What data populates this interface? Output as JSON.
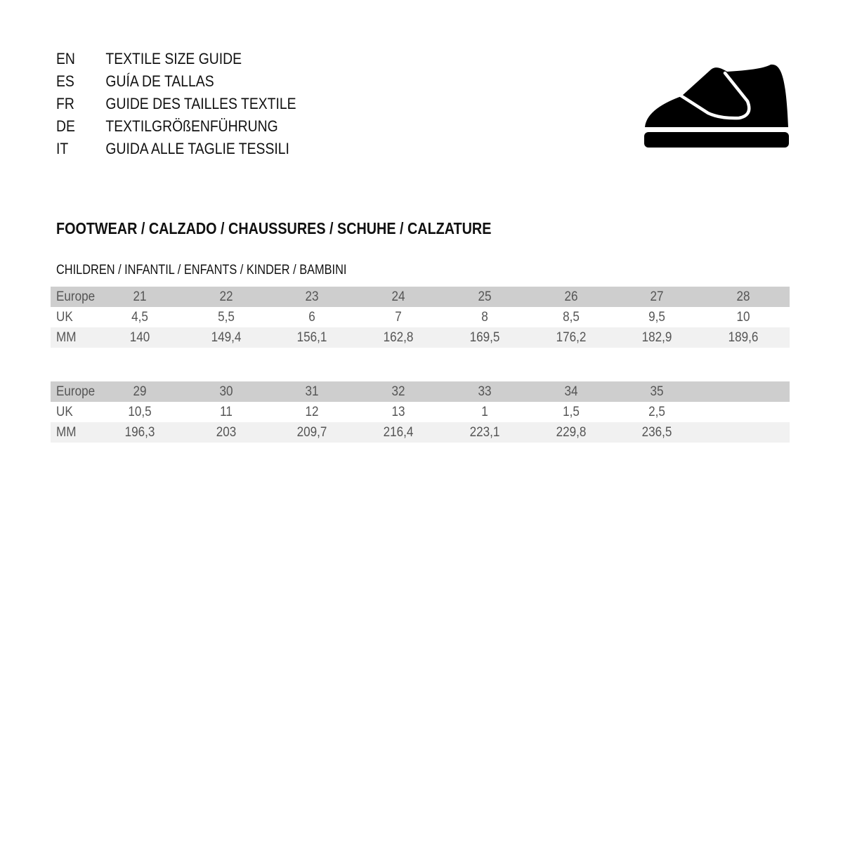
{
  "languages": [
    {
      "code": "EN",
      "title": "TEXTILE SIZE GUIDE"
    },
    {
      "code": "ES",
      "title": "GUÍA DE TALLAS"
    },
    {
      "code": "FR",
      "title": "GUIDE DES TAILLES TEXTILE"
    },
    {
      "code": "DE",
      "title": "TEXTILGRÖßENFÜHRUNG"
    },
    {
      "code": "IT",
      "title": "GUIDA ALLE TAGLIE TESSILI"
    }
  ],
  "icon": "shoe-velcro-icon",
  "section_title": "FOOTWEAR / CALZADO / CHAUSSURES / SCHUHE / CALZATURE",
  "subsection_title": "CHILDREN / INFANTIL / ENFANTS / KINDER / BAMBINI",
  "colors": {
    "header_row": "#cecece",
    "mm_row": "#f1f1f1",
    "text": "#555555"
  },
  "tables": [
    {
      "rows": [
        {
          "label": "Europe",
          "values": [
            "21",
            "22",
            "23",
            "24",
            "25",
            "26",
            "27",
            "28"
          ]
        },
        {
          "label": "UK",
          "values": [
            "4,5",
            "5,5",
            "6",
            "7",
            "8",
            "8,5",
            "9,5",
            "10"
          ]
        },
        {
          "label": "MM",
          "values": [
            "140",
            "149,4",
            "156,1",
            "162,8",
            "169,5",
            "176,2",
            "182,9",
            "189,6"
          ]
        }
      ]
    },
    {
      "rows": [
        {
          "label": "Europe",
          "values": [
            "29",
            "30",
            "31",
            "32",
            "33",
            "34",
            "35"
          ]
        },
        {
          "label": "UK",
          "values": [
            "10,5",
            "11",
            "12",
            "13",
            "1",
            "1,5",
            "2,5"
          ]
        },
        {
          "label": "MM",
          "values": [
            "196,3",
            "203",
            "209,7",
            "216,4",
            "223,1",
            "229,8",
            "236,5"
          ]
        }
      ]
    }
  ]
}
